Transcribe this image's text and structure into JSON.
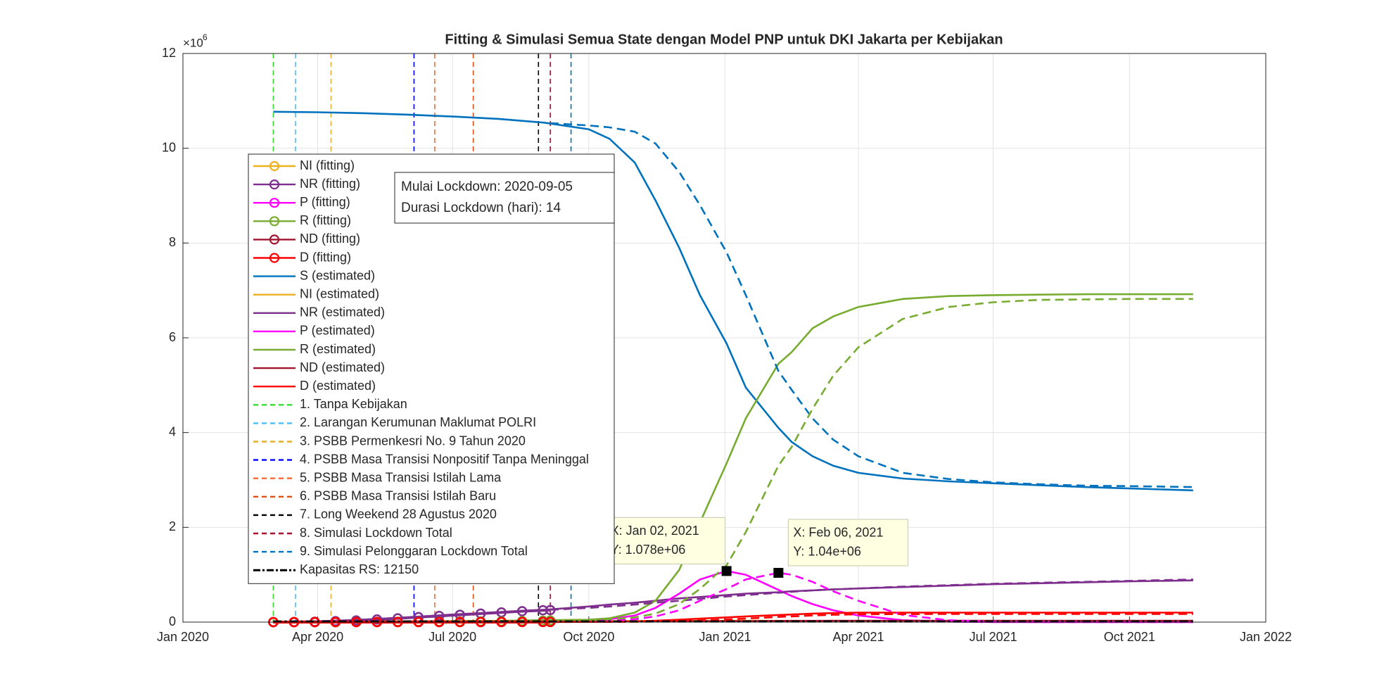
{
  "chart_data": {
    "type": "line",
    "title": "Fitting & Simulasi Semua State dengan Model PNP untuk DKI Jakarta per Kebijakan",
    "y_exponent": "×10",
    "y_exponent_power": "6",
    "xlim": [
      "2020-01-01",
      "2022-01-01"
    ],
    "xticks": [
      {
        "value": "2020-01-01",
        "label": "Jan 2020"
      },
      {
        "value": "2020-04-01",
        "label": "Apr 2020"
      },
      {
        "value": "2020-07-01",
        "label": "Jul 2020"
      },
      {
        "value": "2020-10-01",
        "label": "Oct 2020"
      },
      {
        "value": "2021-01-01",
        "label": "Jan 2021"
      },
      {
        "value": "2021-04-01",
        "label": "Apr 2021"
      },
      {
        "value": "2021-07-01",
        "label": "Jul 2021"
      },
      {
        "value": "2021-10-01",
        "label": "Oct 2021"
      },
      {
        "value": "2022-01-01",
        "label": "Jan 2022"
      }
    ],
    "ylim": [
      0,
      12000000
    ],
    "yticks": [
      0,
      {
        "value": 2000000,
        "label": "2"
      },
      {
        "value": 4000000,
        "label": "4"
      },
      {
        "value": 6000000,
        "label": "6"
      },
      {
        "value": 8000000,
        "label": "8"
      },
      {
        "value": 10000000,
        "label": "10"
      },
      {
        "value": 12000000,
        "label": "12"
      }
    ],
    "grid": true,
    "fitting": {
      "x": [
        "2020-03-02",
        "2020-03-16",
        "2020-03-30",
        "2020-04-13",
        "2020-04-27",
        "2020-05-11",
        "2020-05-25",
        "2020-06-08",
        "2020-06-22",
        "2020-07-06",
        "2020-07-20",
        "2020-08-03",
        "2020-08-17",
        "2020-08-31",
        "2020-09-05"
      ],
      "series": [
        {
          "name": "NI (fitting)",
          "color": "#EDB120",
          "values": [
            0,
            500,
            1500,
            3000,
            4500,
            6000,
            7500,
            9000,
            11000,
            13000,
            15000,
            17000,
            19000,
            21000,
            22000
          ]
        },
        {
          "name": "NR (fitting)",
          "color": "#7E2F8E",
          "values": [
            0,
            2000,
            8000,
            20000,
            35000,
            55000,
            80000,
            105000,
            130000,
            155000,
            180000,
            205000,
            230000,
            250000,
            255000
          ]
        },
        {
          "name": "P (fitting)",
          "color": "#FF00FF",
          "values": [
            0,
            100,
            500,
            1000,
            1500,
            2000,
            2500,
            3000,
            3500,
            4000,
            5000,
            6000,
            7000,
            8000,
            8500
          ]
        },
        {
          "name": "R (fitting)",
          "color": "#77AC30",
          "values": [
            0,
            50,
            200,
            500,
            1000,
            2000,
            3000,
            4500,
            6000,
            8000,
            11000,
            15000,
            22000,
            30000,
            33000
          ]
        },
        {
          "name": "ND (fitting)",
          "color": "#A2142F",
          "values": [
            0,
            50,
            200,
            400,
            700,
            1000,
            1300,
            1600,
            2000,
            2400,
            2800,
            3200,
            3700,
            4200,
            4400
          ]
        },
        {
          "name": "D (fitting)",
          "color": "#FF0000",
          "values": [
            0,
            20,
            100,
            250,
            400,
            500,
            550,
            600,
            650,
            700,
            800,
            900,
            1100,
            1300,
            1350
          ]
        }
      ]
    },
    "estimated": {
      "x": [
        "2020-03-02",
        "2020-04-01",
        "2020-05-01",
        "2020-06-01",
        "2020-07-01",
        "2020-08-01",
        "2020-09-01",
        "2020-10-01",
        "2020-10-15",
        "2020-11-01",
        "2020-11-15",
        "2020-12-01",
        "2020-12-15",
        "2021-01-02",
        "2021-01-15",
        "2021-02-06",
        "2021-02-15",
        "2021-03-01",
        "2021-03-15",
        "2021-04-01",
        "2021-05-01",
        "2021-06-01",
        "2021-07-01",
        "2021-08-01",
        "2021-09-01",
        "2021-10-01",
        "2021-11-13"
      ],
      "series": [
        {
          "name": "S (estimated)",
          "color": "#0072BD",
          "values": [
            10770000,
            10760000,
            10740000,
            10710000,
            10670000,
            10620000,
            10540000,
            10400000,
            10200000,
            9700000,
            8900000,
            7900000,
            6900000,
            5880000,
            4950000,
            4100000,
            3800000,
            3500000,
            3300000,
            3150000,
            3030000,
            2970000,
            2930000,
            2890000,
            2850000,
            2820000,
            2780000
          ]
        },
        {
          "name": "NI (estimated)",
          "color": "#EDB120",
          "values": [
            0,
            3000,
            8000,
            12000,
            15000,
            17000,
            19000,
            21000,
            22000,
            24000,
            25000,
            26000,
            27000,
            28000,
            28000,
            27000,
            26000,
            25000,
            24000,
            23000,
            21000,
            20000,
            19000,
            18000,
            17000,
            16000,
            15000
          ]
        },
        {
          "name": "NR (estimated)",
          "color": "#7E2F8E",
          "values": [
            0,
            10000,
            50000,
            100000,
            160000,
            210000,
            260000,
            330000,
            370000,
            410000,
            450000,
            500000,
            530000,
            570000,
            600000,
            630000,
            650000,
            670000,
            690000,
            710000,
            740000,
            770000,
            800000,
            820000,
            840000,
            860000,
            880000
          ]
        },
        {
          "name": "P (estimated)",
          "color": "#FF00FF",
          "values": [
            0,
            1000,
            2000,
            3000,
            4000,
            6000,
            10000,
            30000,
            60000,
            140000,
            300000,
            600000,
            900000,
            1078000,
            1000000,
            680000,
            550000,
            380000,
            250000,
            140000,
            40000,
            10000,
            2000,
            0,
            0,
            0,
            0
          ]
        },
        {
          "name": "R (estimated)",
          "color": "#77AC30",
          "values": [
            0,
            1000,
            3000,
            8000,
            15000,
            25000,
            40000,
            50000,
            80000,
            200000,
            450000,
            1100000,
            2100000,
            3350000,
            4300000,
            5450000,
            5700000,
            6200000,
            6450000,
            6650000,
            6820000,
            6880000,
            6900000,
            6910000,
            6920000,
            6920000,
            6920000
          ]
        },
        {
          "name": "ND (estimated)",
          "color": "#A2142F",
          "values": [
            0,
            500,
            1500,
            3000,
            4500,
            6000,
            8000,
            10000,
            11000,
            13000,
            15000,
            17000,
            19000,
            21000,
            23000,
            25000,
            26000,
            27000,
            28000,
            29000,
            30000,
            30000,
            30000,
            30000,
            30000,
            30000,
            30000
          ]
        },
        {
          "name": "D (estimated)",
          "color": "#FF0000",
          "values": [
            0,
            500,
            1000,
            1500,
            2000,
            2500,
            3000,
            5000,
            8000,
            15000,
            30000,
            50000,
            75000,
            100000,
            120000,
            150000,
            160000,
            180000,
            190000,
            200000,
            200000,
            200000,
            200000,
            200000,
            200000,
            200000,
            200000
          ]
        }
      ]
    },
    "simulation": {
      "line_style": "dashed",
      "x": [
        "2020-09-05",
        "2020-10-01",
        "2020-10-15",
        "2020-11-01",
        "2020-11-15",
        "2020-12-01",
        "2020-12-15",
        "2021-01-02",
        "2021-01-15",
        "2021-02-06",
        "2021-02-15",
        "2021-03-01",
        "2021-03-15",
        "2021-04-01",
        "2021-05-01",
        "2021-06-01",
        "2021-07-01",
        "2021-08-01",
        "2021-09-01",
        "2021-10-01",
        "2021-11-13"
      ],
      "series": [
        {
          "color": "#0072BD",
          "values": [
            10530000,
            10480000,
            10440000,
            10350000,
            10100000,
            9500000,
            8800000,
            7800000,
            6900000,
            5300000,
            4900000,
            4300000,
            3850000,
            3500000,
            3150000,
            3020000,
            2950000,
            2910000,
            2880000,
            2870000,
            2850000
          ]
        },
        {
          "color": "#7E2F8E",
          "values": [
            260000,
            300000,
            330000,
            370000,
            410000,
            450000,
            490000,
            540000,
            570000,
            620000,
            640000,
            670000,
            690000,
            710000,
            750000,
            780000,
            810000,
            830000,
            850000,
            870000,
            900000
          ]
        },
        {
          "color": "#FF00FF",
          "values": [
            10000,
            20000,
            30000,
            60000,
            120000,
            250000,
            450000,
            700000,
            900000,
            1040000,
            1000000,
            850000,
            650000,
            450000,
            150000,
            40000,
            10000,
            2000,
            0,
            0,
            0
          ]
        },
        {
          "color": "#77AC30",
          "values": [
            40000,
            45000,
            60000,
            100000,
            180000,
            380000,
            700000,
            1200000,
            1900000,
            3300000,
            3700000,
            4500000,
            5200000,
            5800000,
            6400000,
            6650000,
            6750000,
            6800000,
            6810000,
            6820000,
            6820000
          ]
        },
        {
          "color": "#FF0000",
          "values": [
            3000,
            4000,
            5000,
            8000,
            13000,
            22000,
            35000,
            55000,
            75000,
            110000,
            120000,
            140000,
            155000,
            165000,
            170000,
            172000,
            172000,
            172000,
            172000,
            172000,
            172000
          ]
        }
      ]
    },
    "policies": [
      {
        "name": "1. Tanpa Kebijakan",
        "x": "2020-03-02",
        "color": "#33DD33"
      },
      {
        "name": "2. Larangan Kerumunan Maklumat POLRI",
        "x": "2020-03-17",
        "color": "#4DBEEE"
      },
      {
        "name": "3. PSBB Permenkesri No. 9 Tahun 2020",
        "x": "2020-04-10",
        "color": "#E0B030"
      },
      {
        "name": "4. PSBB Masa Transisi Nonpositif Tanpa Meninggal",
        "x": "2020-06-05",
        "color": "#0000FF"
      },
      {
        "name": "5. PSBB Masa Transisi Istilah Lama",
        "x": "2020-06-19",
        "color": "#F26B3A"
      },
      {
        "name": "6. PSBB Masa Transisi Istilah Baru",
        "x": "2020-07-15",
        "color": "#D95319"
      },
      {
        "name": "7. Long Weekend 28 Agustus 2020",
        "x": "2020-08-28",
        "color": "#000000"
      },
      {
        "name": "8. Simulasi Lockdown Total",
        "x": "2020-09-05",
        "color": "#A2142F"
      },
      {
        "name": "9. Simulasi Pelonggaran Lockdown Total",
        "x": "2020-09-19",
        "color": "#0072BD"
      }
    ],
    "capacity": {
      "name": "Kapasitas RS: 12150",
      "value": 12150,
      "x": [
        "2020-03-02",
        "2021-11-13"
      ],
      "color": "#000000"
    },
    "annotation": [
      "Mulai Lockdown: 2020-09-05",
      "Durasi Lockdown (hari): 14"
    ],
    "datatips": [
      {
        "x": "2021-01-02",
        "y": 1078000,
        "x_label": "X: Jan 02, 2021",
        "y_label": "Y: 1.078e+06"
      },
      {
        "x": "2021-02-06",
        "y": 1040000,
        "x_label": "X: Feb 06, 2021",
        "y_label": "Y: 1.04e+06"
      }
    ]
  }
}
